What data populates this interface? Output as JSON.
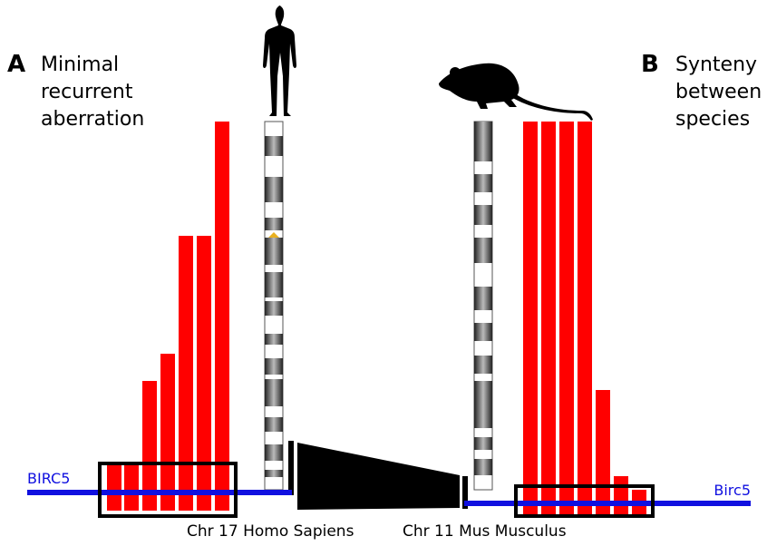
{
  "panel_a": {
    "letter": "A",
    "caption_lines": [
      "Minimal",
      "recurrent",
      "aberration"
    ],
    "gene_label": "BIRC5",
    "chromosome_label": "Chr 17 Homo Sapiens"
  },
  "panel_b": {
    "letter": "B",
    "caption_lines": [
      "Synteny",
      "between",
      "species"
    ],
    "gene_label": "Birc5",
    "chromosome_label": "Chr 11 Mus Musculus"
  }
}
